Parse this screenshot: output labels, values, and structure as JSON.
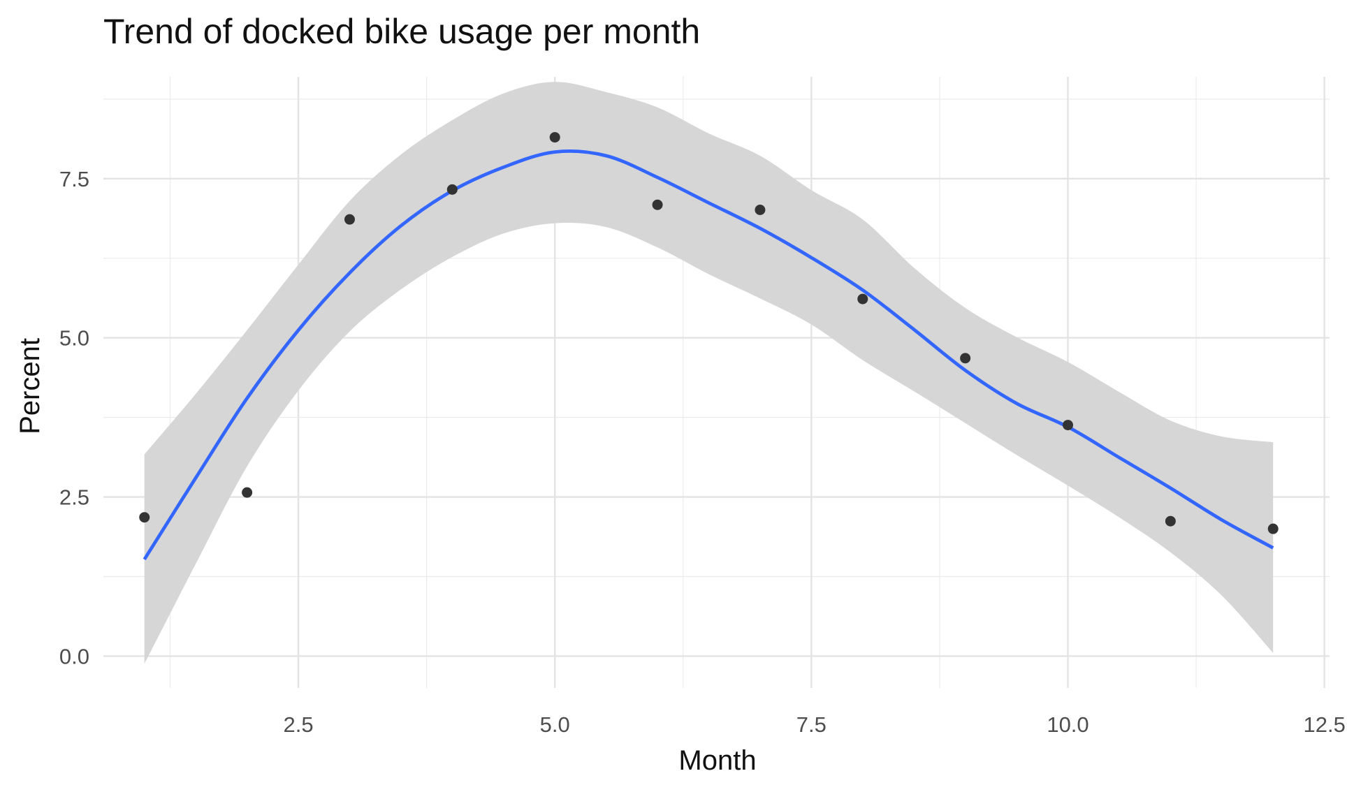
{
  "chart_data": {
    "type": "scatter",
    "title": "Trend of docked bike usage per month",
    "xlabel": "Month",
    "ylabel": "Percent",
    "xlim": [
      0.6,
      12.55
    ],
    "ylim": [
      -0.5,
      9.1
    ],
    "x_ticks": [
      2.5,
      5.0,
      7.5,
      10.0,
      12.5
    ],
    "x_tick_labels": [
      "2.5",
      "5.0",
      "7.5",
      "10.0",
      "12.5"
    ],
    "y_ticks": [
      0.0,
      2.5,
      5.0,
      7.5
    ],
    "y_tick_labels": [
      "0.0",
      "2.5",
      "5.0",
      "7.5"
    ],
    "grid": true,
    "series": [
      {
        "kind": "points",
        "x": [
          1,
          2,
          3,
          4,
          5,
          6,
          7,
          8,
          9,
          10,
          11,
          12
        ],
        "y": [
          2.18,
          2.57,
          6.86,
          7.33,
          8.15,
          7.09,
          7.01,
          5.61,
          4.68,
          3.63,
          2.12,
          2.0
        ],
        "color": "#333333"
      },
      {
        "kind": "smooth",
        "x": [
          1,
          1.5,
          2,
          2.5,
          3,
          3.5,
          4,
          4.5,
          5,
          5.5,
          6,
          6.5,
          7,
          7.5,
          8,
          8.5,
          9,
          9.5,
          10,
          10.5,
          11,
          11.5,
          12
        ],
        "y": [
          1.52,
          2.8,
          4.05,
          5.12,
          6.02,
          6.76,
          7.31,
          7.68,
          7.92,
          7.86,
          7.52,
          7.12,
          6.72,
          6.26,
          5.75,
          5.13,
          4.49,
          3.97,
          3.6,
          3.12,
          2.64,
          2.14,
          1.7
        ],
        "lower": [
          -0.12,
          1.45,
          2.98,
          4.17,
          5.1,
          5.76,
          6.27,
          6.64,
          6.8,
          6.74,
          6.42,
          6.0,
          5.62,
          5.21,
          4.65,
          4.16,
          3.66,
          3.16,
          2.68,
          2.18,
          1.63,
          0.95,
          0.05
        ],
        "upper": [
          3.17,
          4.12,
          5.12,
          6.15,
          7.15,
          7.88,
          8.42,
          8.84,
          9.02,
          8.86,
          8.62,
          8.21,
          7.86,
          7.32,
          6.86,
          6.1,
          5.47,
          5.01,
          4.62,
          4.15,
          3.7,
          3.45,
          3.36
        ],
        "line_color": "#3366ff",
        "band_color": "#d6d6d6"
      }
    ]
  }
}
